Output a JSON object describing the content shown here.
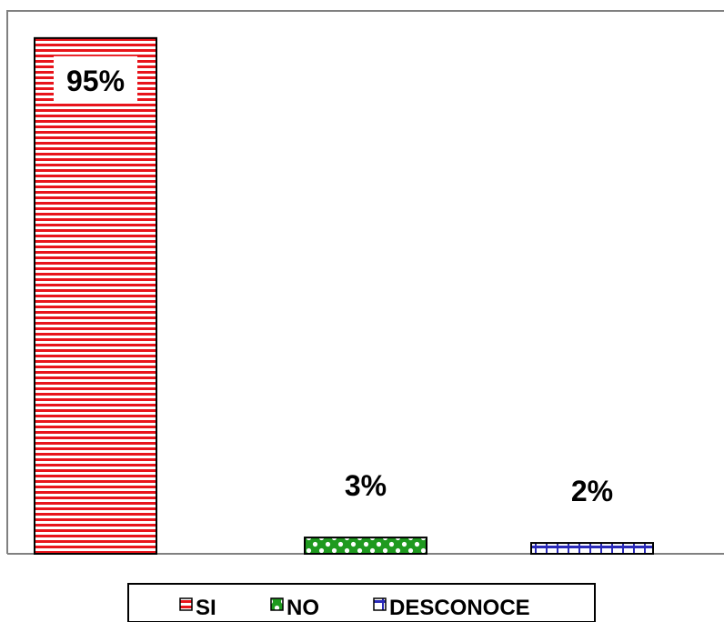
{
  "chart_data": {
    "type": "bar",
    "categories": [
      "SI",
      "NO",
      "DESCONOCE"
    ],
    "values": [
      95,
      3,
      2
    ],
    "value_labels": [
      "95%",
      "3%",
      "2%"
    ],
    "ylim": [
      0,
      100
    ],
    "grid": false,
    "legend": {
      "placement": "bottom",
      "entries": [
        "SI",
        "NO",
        "DESCONOCE"
      ]
    },
    "colors": {
      "SI": "#e8141b",
      "NO": "#1f9a1f",
      "DESCONOCE": "#2a2ab8"
    }
  }
}
